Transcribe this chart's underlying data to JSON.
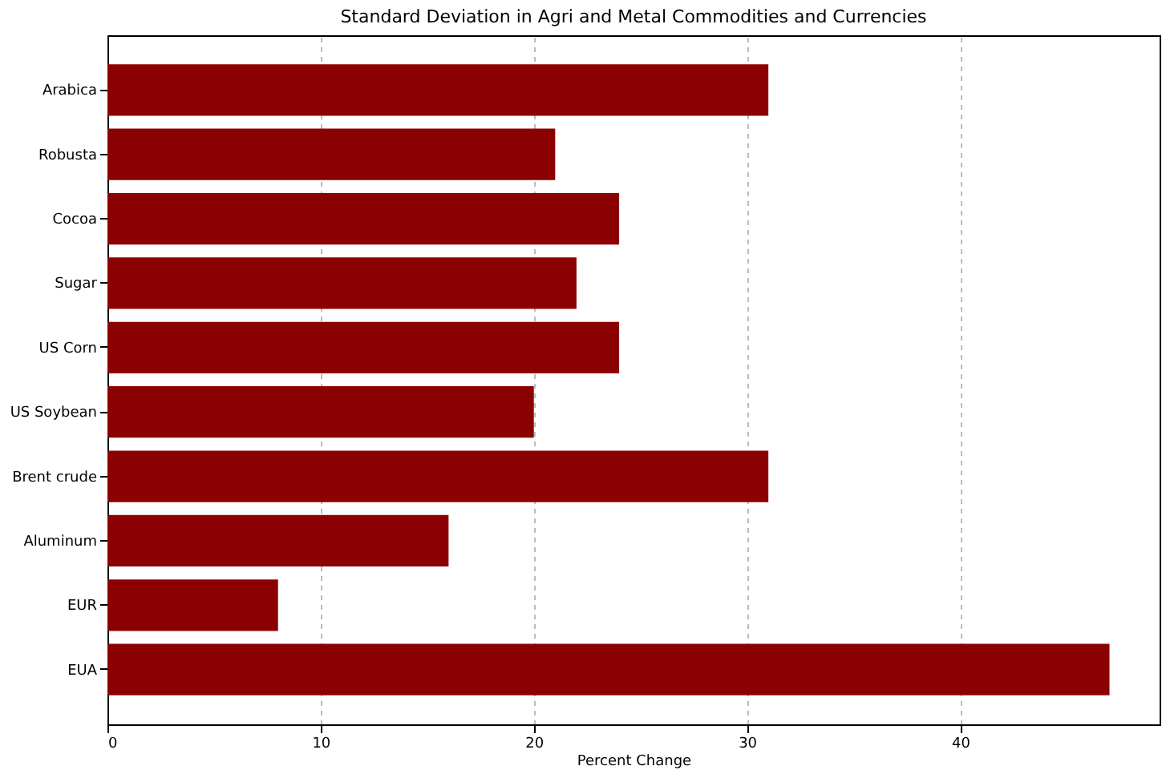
{
  "chart_data": {
    "type": "bar",
    "orientation": "horizontal",
    "title": "Standard Deviation in Agri and Metal Commodities and Currencies",
    "xlabel": "Percent Change",
    "categories": [
      "Arabica",
      "Robusta",
      "Cocoa",
      "Sugar",
      "US Corn",
      "US Soybean",
      "Brent crude",
      "Aluminum",
      "EUR",
      "EUA"
    ],
    "values": [
      31,
      21,
      24,
      22,
      24,
      20,
      31,
      16,
      8,
      47
    ],
    "color": "#8b0000",
    "xlim": [
      0,
      49.35
    ],
    "xticks": [
      0,
      10,
      20,
      30,
      40
    ],
    "grid": "x"
  }
}
